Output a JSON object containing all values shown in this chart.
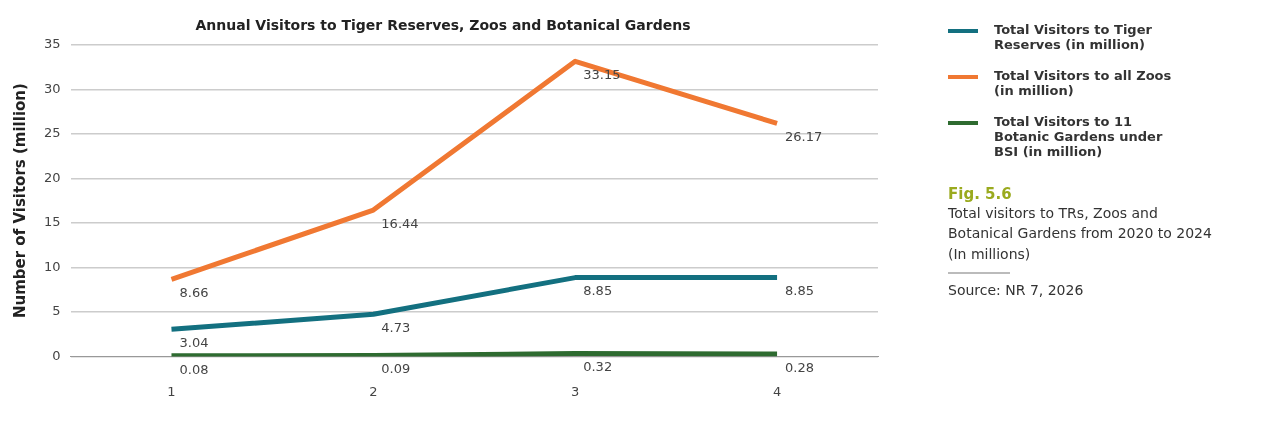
{
  "chart_data": {
    "type": "line",
    "title": "Annual Visitors to Tiger Reserves, Zoos and Botanical Gardens",
    "ylabel": "Number of Visitors (million)",
    "categories": [
      "1",
      "2",
      "3",
      "4"
    ],
    "series": [
      {
        "name": "Total Visitors to Tiger Reserves (in million)",
        "color": "#137080",
        "values": [
          3.04,
          4.73,
          8.85,
          8.85
        ]
      },
      {
        "name": "Total Visitors to all Zoos (in million)",
        "color": "#f07832",
        "values": [
          8.66,
          16.44,
          33.15,
          26.17
        ]
      },
      {
        "name": "Total Visitors to 11 Botanic Gardens under BSI (in million)",
        "color": "#2e6b30",
        "values": [
          0.08,
          0.09,
          0.32,
          0.28
        ]
      }
    ],
    "ylim": [
      0,
      35
    ],
    "yticks": [
      0,
      5,
      10,
      15,
      20,
      25,
      30,
      35
    ],
    "grid": "y",
    "legend": "right",
    "marker": "none",
    "line_style": "solid",
    "data_labels": true,
    "annotations": [
      "Fig. 5.6",
      "Total visitors to TRs, Zoos and Botanical Gardens from 2020 to 2024 (In millions)",
      "Source: NR 7, 2026"
    ]
  }
}
